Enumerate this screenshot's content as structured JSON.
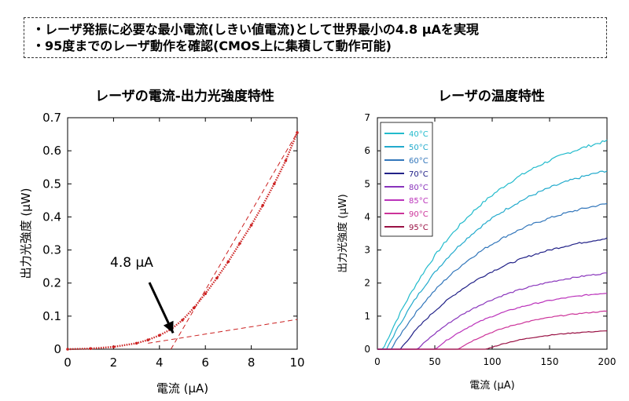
{
  "summary": {
    "lines": [
      "・レーザ発振に必要な最小電流(しきい値電流)として世界最小の4.8 μAを実現",
      "・95度までのレーザ動作を確認(CMOS上に集積して動作可能)"
    ]
  },
  "colors": {
    "left_series": "#cc2222",
    "right_series": [
      "#22bbcc",
      "#22aacc",
      "#3377bb",
      "#222288",
      "#8833bb",
      "#bb33bb",
      "#cc3399",
      "#991144"
    ]
  },
  "chart_data": [
    {
      "type": "line",
      "title": "レーザの電流-出力光強度特性",
      "xlabel": "電流 (μA)",
      "ylabel": "出力光強度 (μW)",
      "xlim": [
        0,
        10
      ],
      "ylim": [
        0,
        0.7
      ],
      "xticks": [
        0,
        2,
        4,
        6,
        8,
        10
      ],
      "yticks": [
        0,
        0.1,
        0.2,
        0.3,
        0.4,
        0.5,
        0.6,
        0.7
      ],
      "xtick_labels": [
        "0",
        "2",
        "4",
        "6",
        "8",
        "10"
      ],
      "ytick_labels": [
        "0",
        "0.1",
        "0.2",
        "0.3",
        "0.4",
        "0.5",
        "0.6",
        "0.7"
      ],
      "grid": false,
      "series": [
        {
          "style": "dotted-markers",
          "x": [
            0,
            1,
            2,
            3,
            3.5,
            4,
            4.5,
            5,
            5.5,
            6,
            6.5,
            7,
            7.5,
            8,
            8.5,
            9,
            9.5,
            10
          ],
          "y": [
            0.0,
            0.002,
            0.007,
            0.018,
            0.028,
            0.042,
            0.06,
            0.088,
            0.125,
            0.168,
            0.215,
            0.265,
            0.32,
            0.375,
            0.435,
            0.5,
            0.57,
            0.655
          ]
        },
        {
          "style": "dashed-fit-low",
          "x": [
            3.5,
            10
          ],
          "y": [
            0.018,
            0.09
          ]
        },
        {
          "style": "dashed-fit-high",
          "x": [
            4.5,
            10
          ],
          "y": [
            0.0,
            0.655
          ]
        }
      ],
      "annotations": [
        {
          "text": "4.8 μA",
          "x": 4.8,
          "y": 0.03
        }
      ]
    },
    {
      "type": "line",
      "title": "レーザの温度特性",
      "xlabel": "電流 (μA)",
      "ylabel": "出力光強度 (μW)",
      "xlim": [
        0,
        200
      ],
      "ylim": [
        0,
        7
      ],
      "xticks": [
        0,
        50,
        100,
        150,
        200
      ],
      "yticks": [
        0,
        1,
        2,
        3,
        4,
        5,
        6,
        7
      ],
      "xtick_labels": [
        "0",
        "50",
        "100",
        "150",
        "200"
      ],
      "ytick_labels": [
        "0",
        "1",
        "2",
        "3",
        "4",
        "5",
        "6",
        "7"
      ],
      "grid": false,
      "legend": "top-left",
      "series": [
        {
          "name": "40°C",
          "threshold": 5,
          "final": 6.3
        },
        {
          "name": "50°C",
          "threshold": 8,
          "final": 5.4
        },
        {
          "name": "60°C",
          "threshold": 12,
          "final": 4.4
        },
        {
          "name": "70°C",
          "threshold": 20,
          "final": 3.35
        },
        {
          "name": "80°C",
          "threshold": 35,
          "final": 2.3
        },
        {
          "name": "85°C",
          "threshold": 50,
          "final": 1.7
        },
        {
          "name": "90°C",
          "threshold": 70,
          "final": 1.15
        },
        {
          "name": "95°C",
          "threshold": 95,
          "final": 0.55
        }
      ]
    }
  ]
}
